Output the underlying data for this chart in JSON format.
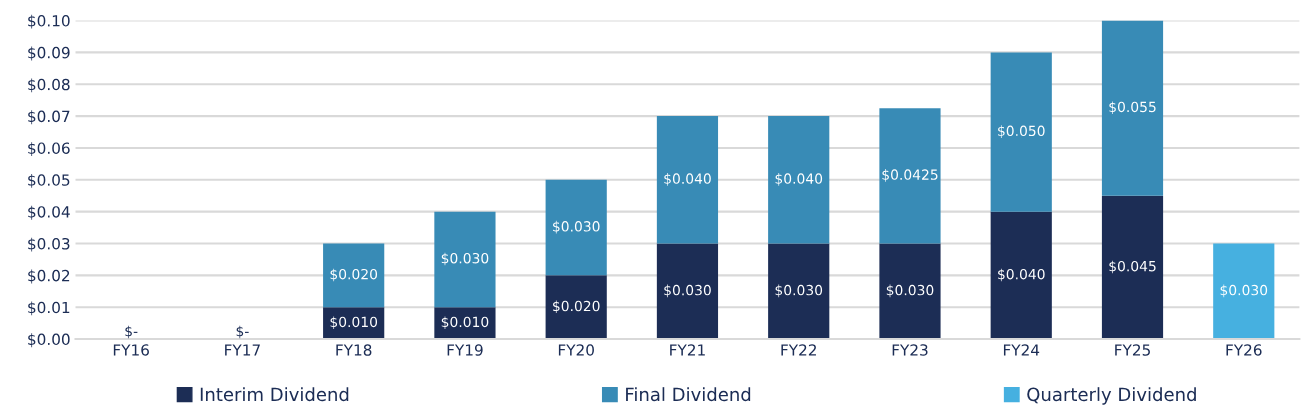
{
  "chart_data": {
    "type": "bar",
    "stacked": true,
    "categories": [
      "FY16",
      "FY17",
      "FY18",
      "FY19",
      "FY20",
      "FY21",
      "FY22",
      "FY23",
      "FY24",
      "FY25",
      "FY26"
    ],
    "series": [
      {
        "name": "Interim Dividend",
        "color": "#1c2d55",
        "values": [
          0,
          0,
          0.01,
          0.01,
          0.02,
          0.03,
          0.03,
          0.03,
          0.04,
          0.045,
          null
        ],
        "value_labels": [
          "$-",
          "$-",
          "$0.010",
          "$0.010",
          "$0.020",
          "$0.030",
          "$0.030",
          "$0.030",
          "$0.040",
          "$0.045",
          null
        ]
      },
      {
        "name": "Final Dividend",
        "color": "#388bb6",
        "values": [
          null,
          null,
          0.02,
          0.03,
          0.03,
          0.04,
          0.04,
          0.0425,
          0.05,
          0.055,
          null
        ],
        "value_labels": [
          null,
          null,
          "$0.020",
          "$0.030",
          "$0.030",
          "$0.040",
          "$0.040",
          "$0.0425",
          "$0.050",
          "$0.055",
          null
        ]
      },
      {
        "name": "Quarterly Dividend",
        "color": "#46b0e0",
        "values": [
          null,
          null,
          null,
          null,
          null,
          null,
          null,
          null,
          null,
          null,
          0.03
        ],
        "value_labels": [
          null,
          null,
          null,
          null,
          null,
          null,
          null,
          null,
          null,
          null,
          "$0.030"
        ]
      }
    ],
    "ylim": [
      0,
      0.1
    ],
    "yticks": [
      {
        "value": 0,
        "label": "$0.00"
      },
      {
        "value": 0.01,
        "label": "$0.01"
      },
      {
        "value": 0.02,
        "label": "$0.02"
      },
      {
        "value": 0.03,
        "label": "$0.03"
      },
      {
        "value": 0.04,
        "label": "$0.04"
      },
      {
        "value": 0.05,
        "label": "$0.05"
      },
      {
        "value": 0.06,
        "label": "$0.06"
      },
      {
        "value": 0.07,
        "label": "$0.07"
      },
      {
        "value": 0.08,
        "label": "$0.08"
      },
      {
        "value": 0.09,
        "label": "$0.09"
      },
      {
        "value": 0.1,
        "label": "$0.10"
      }
    ],
    "grid": "y",
    "legend": "bottom"
  }
}
